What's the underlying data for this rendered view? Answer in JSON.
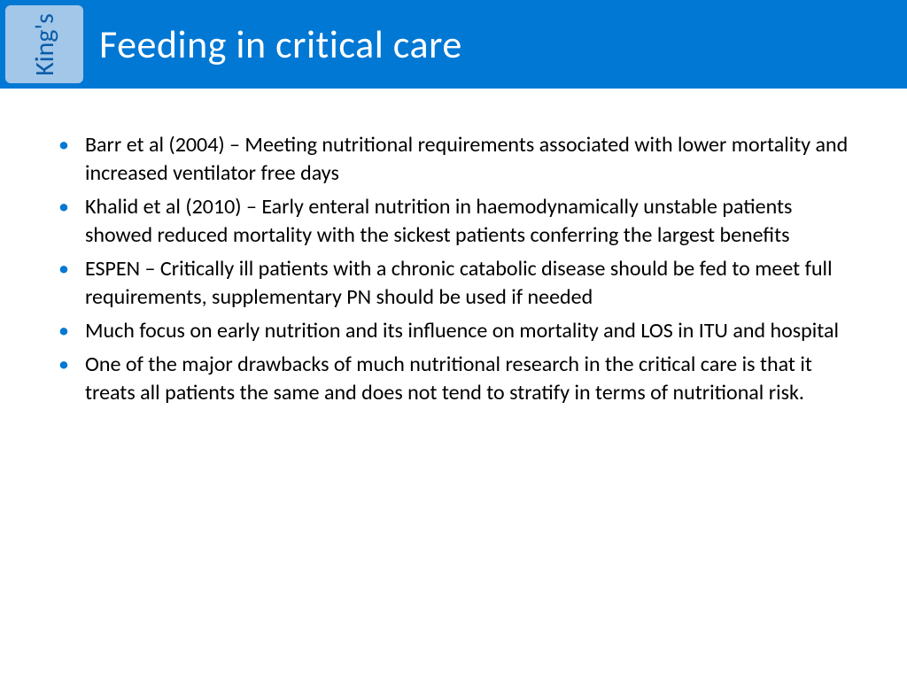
{
  "header": {
    "bg_color": "#0078d4",
    "title": "Feeding in critical care",
    "title_color": "#ffffff",
    "title_fontsize": 44
  },
  "logo": {
    "text": "King's",
    "bg_color": "#a3c7e8",
    "text_color": "#0a5ca8"
  },
  "bullets": {
    "color": "#0078d4",
    "text_color": "#000000",
    "fontsize": 24,
    "line_height": 32,
    "items": [
      "Barr et al (2004) – Meeting nutritional requirements associated with lower mortality and increased ventilator free days",
      "Khalid et al (2010) – Early enteral nutrition in haemodynamically unstable patients showed reduced mortality with the sickest patients conferring the largest benefits",
      "ESPEN – Critically ill patients with a chronic catabolic disease should be fed to meet full requirements, supplementary PN should be used if needed",
      "Much focus on early nutrition and its influence on mortality and LOS in ITU and hospital",
      "One of the major drawbacks of much nutritional research in the critical care is that it treats all patients the same and does not tend to stratify in terms of nutritional risk."
    ]
  }
}
